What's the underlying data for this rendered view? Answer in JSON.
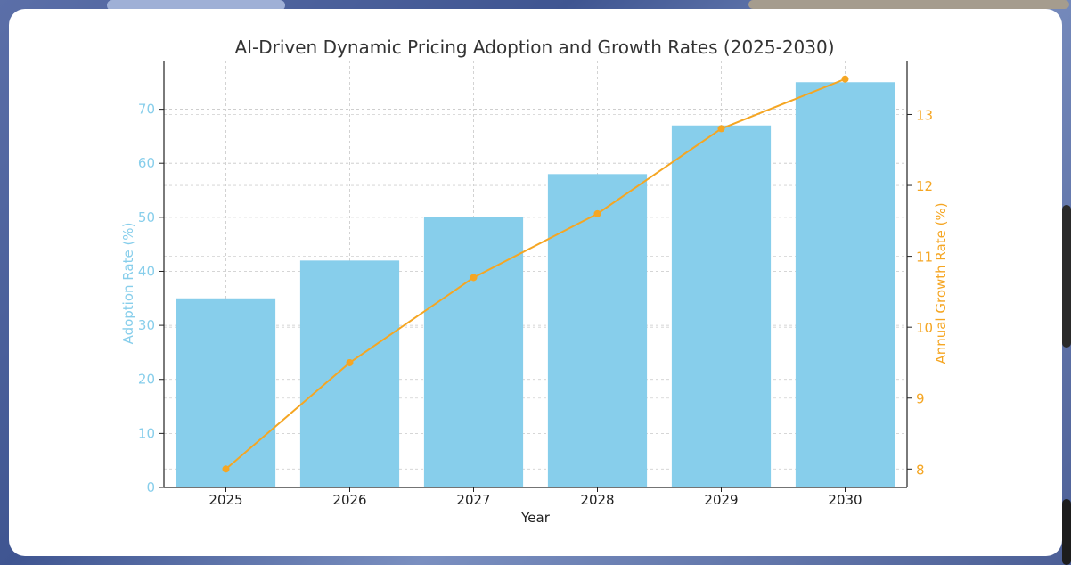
{
  "chart_data": {
    "type": "bar",
    "title": "AI-Driven Dynamic Pricing Adoption and Growth Rates (2025-2030)",
    "xlabel": "Year",
    "categories": [
      "2025",
      "2026",
      "2027",
      "2028",
      "2029",
      "2030"
    ],
    "series": [
      {
        "name": "Adoption Rate (%)",
        "type": "bar",
        "axis": "left",
        "color": "#87ceeb",
        "values": [
          35,
          42,
          50,
          58,
          67,
          75
        ]
      },
      {
        "name": "Annual Growth Rate (%)",
        "type": "line",
        "axis": "right",
        "color": "#f5a623",
        "values": [
          8.0,
          9.5,
          10.7,
          11.6,
          12.8,
          13.5
        ]
      }
    ],
    "y_left": {
      "label": "Adoption Rate (%)",
      "lim": [
        0,
        79
      ],
      "ticks": [
        0,
        10,
        20,
        30,
        40,
        50,
        60,
        70
      ]
    },
    "y_right": {
      "label": "Annual Growth Rate (%)",
      "lim": [
        7.74,
        13.76
      ],
      "ticks": [
        8,
        9,
        10,
        11,
        12,
        13
      ]
    },
    "grid": true
  }
}
